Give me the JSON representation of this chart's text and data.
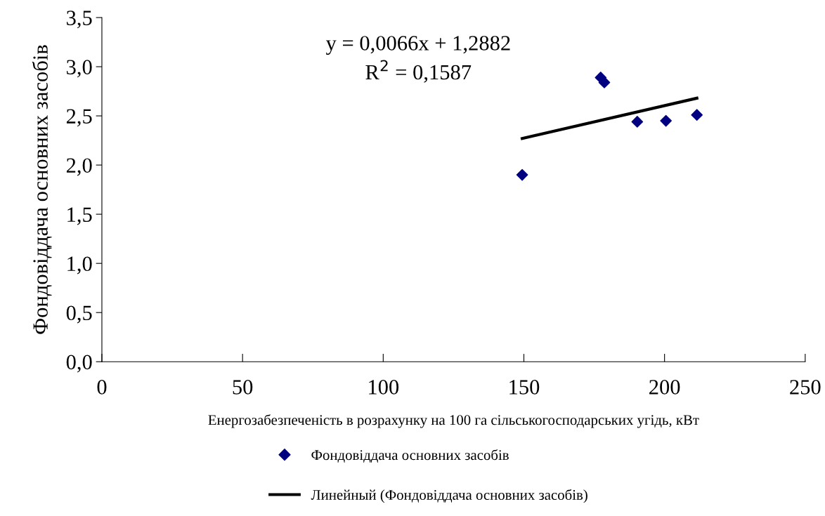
{
  "chart_data": {
    "type": "scatter",
    "xlabel": "Енергозабезпеченість в розрахунку на 100 га сільськогосподарських угідь, кВт",
    "ylabel": "Фондовіддача основних засобів",
    "series": [
      {
        "name": "Фондовіддача основних засобів",
        "color": "#000080",
        "marker": "diamond",
        "x": [
          149.4,
          177.3,
          178.6,
          190.3,
          200.5,
          211.5
        ],
        "values": [
          1.9,
          2.89,
          2.84,
          2.44,
          2.45,
          2.51
        ]
      },
      {
        "name": "Линейный (Фондовіддача основних засобів)",
        "type": "line",
        "color": "#000000",
        "line_style": "solid",
        "x": [
          149.4,
          211.5
        ],
        "values": [
          2.27,
          2.68
        ]
      }
    ],
    "annotations": [
      "y = 0,0066x + 1,2882",
      "R$^{2}$ = 0,1587"
    ],
    "xlim": [
      0,
      250
    ],
    "xticks": [
      0,
      50,
      100,
      150,
      200,
      250
    ],
    "ylim": [
      0,
      3.5
    ],
    "yticks": [
      {
        "value": 0,
        "label": "0,0"
      },
      {
        "value": 0.5,
        "label": "0,5"
      },
      {
        "value": 1,
        "label": "1,0"
      },
      {
        "value": 1.5,
        "label": "1,5"
      },
      {
        "value": 2,
        "label": "2,0"
      },
      {
        "value": 2.5,
        "label": "2,5"
      },
      {
        "value": 3,
        "label": "3,0"
      },
      {
        "value": 3.5,
        "label": "3,5"
      }
    ],
    "grid": false,
    "legend": "bottom"
  }
}
